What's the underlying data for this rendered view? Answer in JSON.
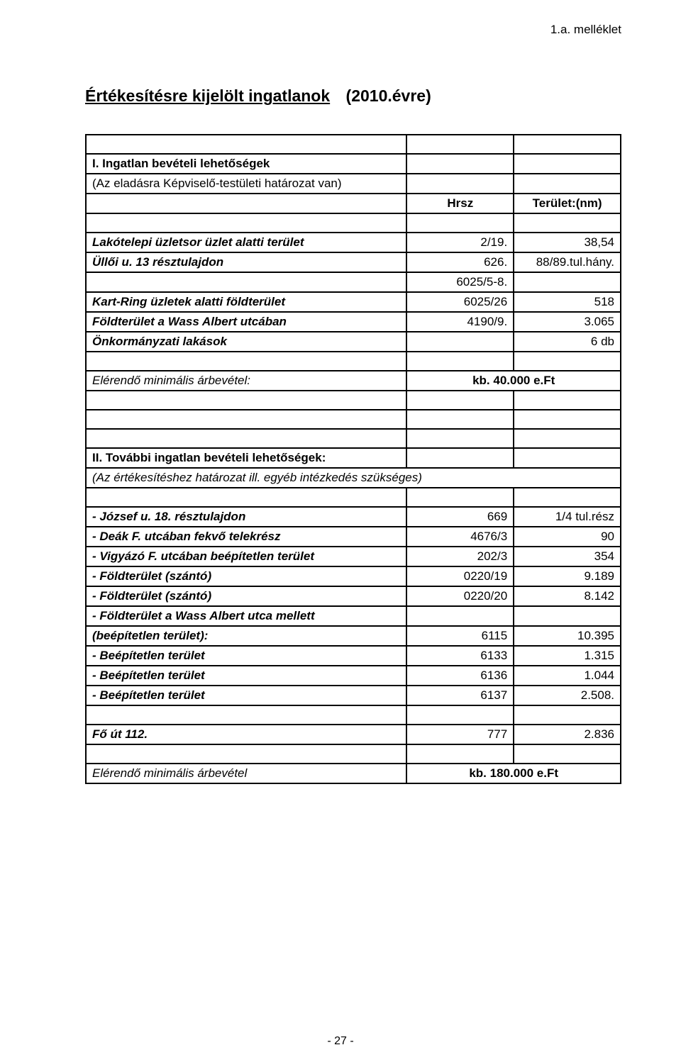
{
  "annex": "1.a. melléklet",
  "title": {
    "main": "Értékesítésre kijelölt ingatlanok",
    "suffix": "(2010.évre)"
  },
  "table1": {
    "head1": "I. Ingatlan bevételi lehetőségek",
    "head2": "(Az eladásra Képviselő-testületi határozat van)",
    "col_hrsz": "Hrsz",
    "col_terulet": "Terület:(nm)",
    "rows": [
      {
        "label": "Lakótelepi üzletsor üzlet alatti terület",
        "c2": "2/19.",
        "c3": "38,54"
      },
      {
        "label": "Üllői u. 13 résztulajdon",
        "c2": "626.",
        "c3": "88/89.tul.hány."
      },
      {
        "label": "",
        "c2": "6025/5-8.",
        "c3": ""
      },
      {
        "label": "Kart-Ring üzletek alatti földterület",
        "c2": "6025/26",
        "c3": "518"
      },
      {
        "label": "Földterület a Wass Albert utcában",
        "c2": "4190/9.",
        "c3": "3.065"
      },
      {
        "label": "Önkormányzati lakások",
        "c2": "",
        "c3": "6 db"
      }
    ],
    "footer_label": "Elérendő minimális árbevétel:",
    "footer_value": "kb.  40.000 e.Ft"
  },
  "table2": {
    "head1": "II. További ingatlan bevételi lehetőségek:",
    "head2": "(Az értékesítéshez határozat ill. egyéb intézkedés szükséges)",
    "rows": [
      {
        "label": "- József u. 18. résztulajdon",
        "c2": "669",
        "c3": "1/4 tul.rész"
      },
      {
        "label": "- Deák F. utcában fekvő telekrész",
        "c2": "4676/3",
        "c3": "90"
      },
      {
        "label": "- Vigyázó F. utcában beépítetlen terület",
        "c2": "202/3",
        "c3": "354"
      },
      {
        "label": "- Földterület (szántó)",
        "c2": "0220/19",
        "c3": "9.189"
      },
      {
        "label": "- Földterület (szántó)",
        "c2": "0220/20",
        "c3": "8.142"
      },
      {
        "label": "- Földterület a Wass Albert utca mellett",
        "c2": "",
        "c3": ""
      },
      {
        "label": "  (beépítetlen terület):",
        "c2": "6115",
        "c3": "10.395"
      },
      {
        "label": "- Beépítetlen terület",
        "c2": "6133",
        "c3": "1.315"
      },
      {
        "label": "- Beépítetlen terület",
        "c2": "6136",
        "c3": "1.044"
      },
      {
        "label": "- Beépítetlen terület",
        "c2": "6137",
        "c3": "2.508."
      }
    ],
    "fout_label": "Fő út 112.",
    "fout_c2": "777",
    "fout_c3": "2.836",
    "footer_label": "Elérendő minimális árbevétel",
    "footer_value": "kb. 180.000 e.Ft"
  },
  "page_number": "- 27 -",
  "colors": {
    "text": "#000000",
    "bg": "#ffffff",
    "border": "#000000"
  },
  "fonts": {
    "body_size": 17,
    "title_size": 23
  }
}
